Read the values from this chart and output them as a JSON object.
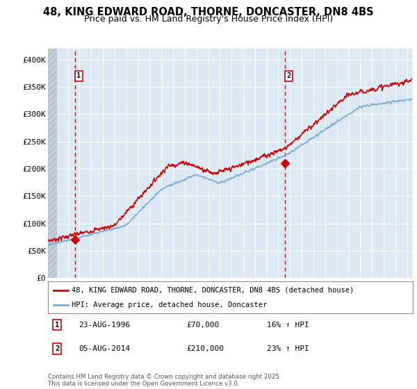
{
  "title": "48, KING EDWARD ROAD, THORNE, DONCASTER, DN8 4BS",
  "subtitle": "Price paid vs. HM Land Registry's House Price Index (HPI)",
  "xlim": [
    1994.3,
    2025.5
  ],
  "ylim": [
    0,
    420000
  ],
  "yticks": [
    0,
    50000,
    100000,
    150000,
    200000,
    250000,
    300000,
    350000,
    400000
  ],
  "ytick_labels": [
    "£0",
    "£50K",
    "£100K",
    "£150K",
    "£200K",
    "£250K",
    "£300K",
    "£350K",
    "£400K"
  ],
  "sale1_date": 1996.64,
  "sale1_price": 70000,
  "sale1_label": "1",
  "sale1_text": "23-AUG-1996",
  "sale1_amount": "£70,000",
  "sale1_hpi": "16% ↑ HPI",
  "sale2_date": 2014.59,
  "sale2_price": 210000,
  "sale2_label": "2",
  "sale2_text": "05-AUG-2014",
  "sale2_amount": "£210,000",
  "sale2_hpi": "23% ↑ HPI",
  "red_line_color": "#cc0000",
  "blue_line_color": "#7aadd4",
  "background_color": "#ffffff",
  "plot_bg_color": "#dce9f5",
  "grid_color": "#ffffff",
  "legend_line1": "48, KING EDWARD ROAD, THORNE, DONCASTER, DN8 4BS (detached house)",
  "legend_line2": "HPI: Average price, detached house, Doncaster",
  "footnote": "Contains HM Land Registry data © Crown copyright and database right 2025.\nThis data is licensed under the Open Government Licence v3.0.",
  "title_fontsize": 10.5,
  "subtitle_fontsize": 9
}
